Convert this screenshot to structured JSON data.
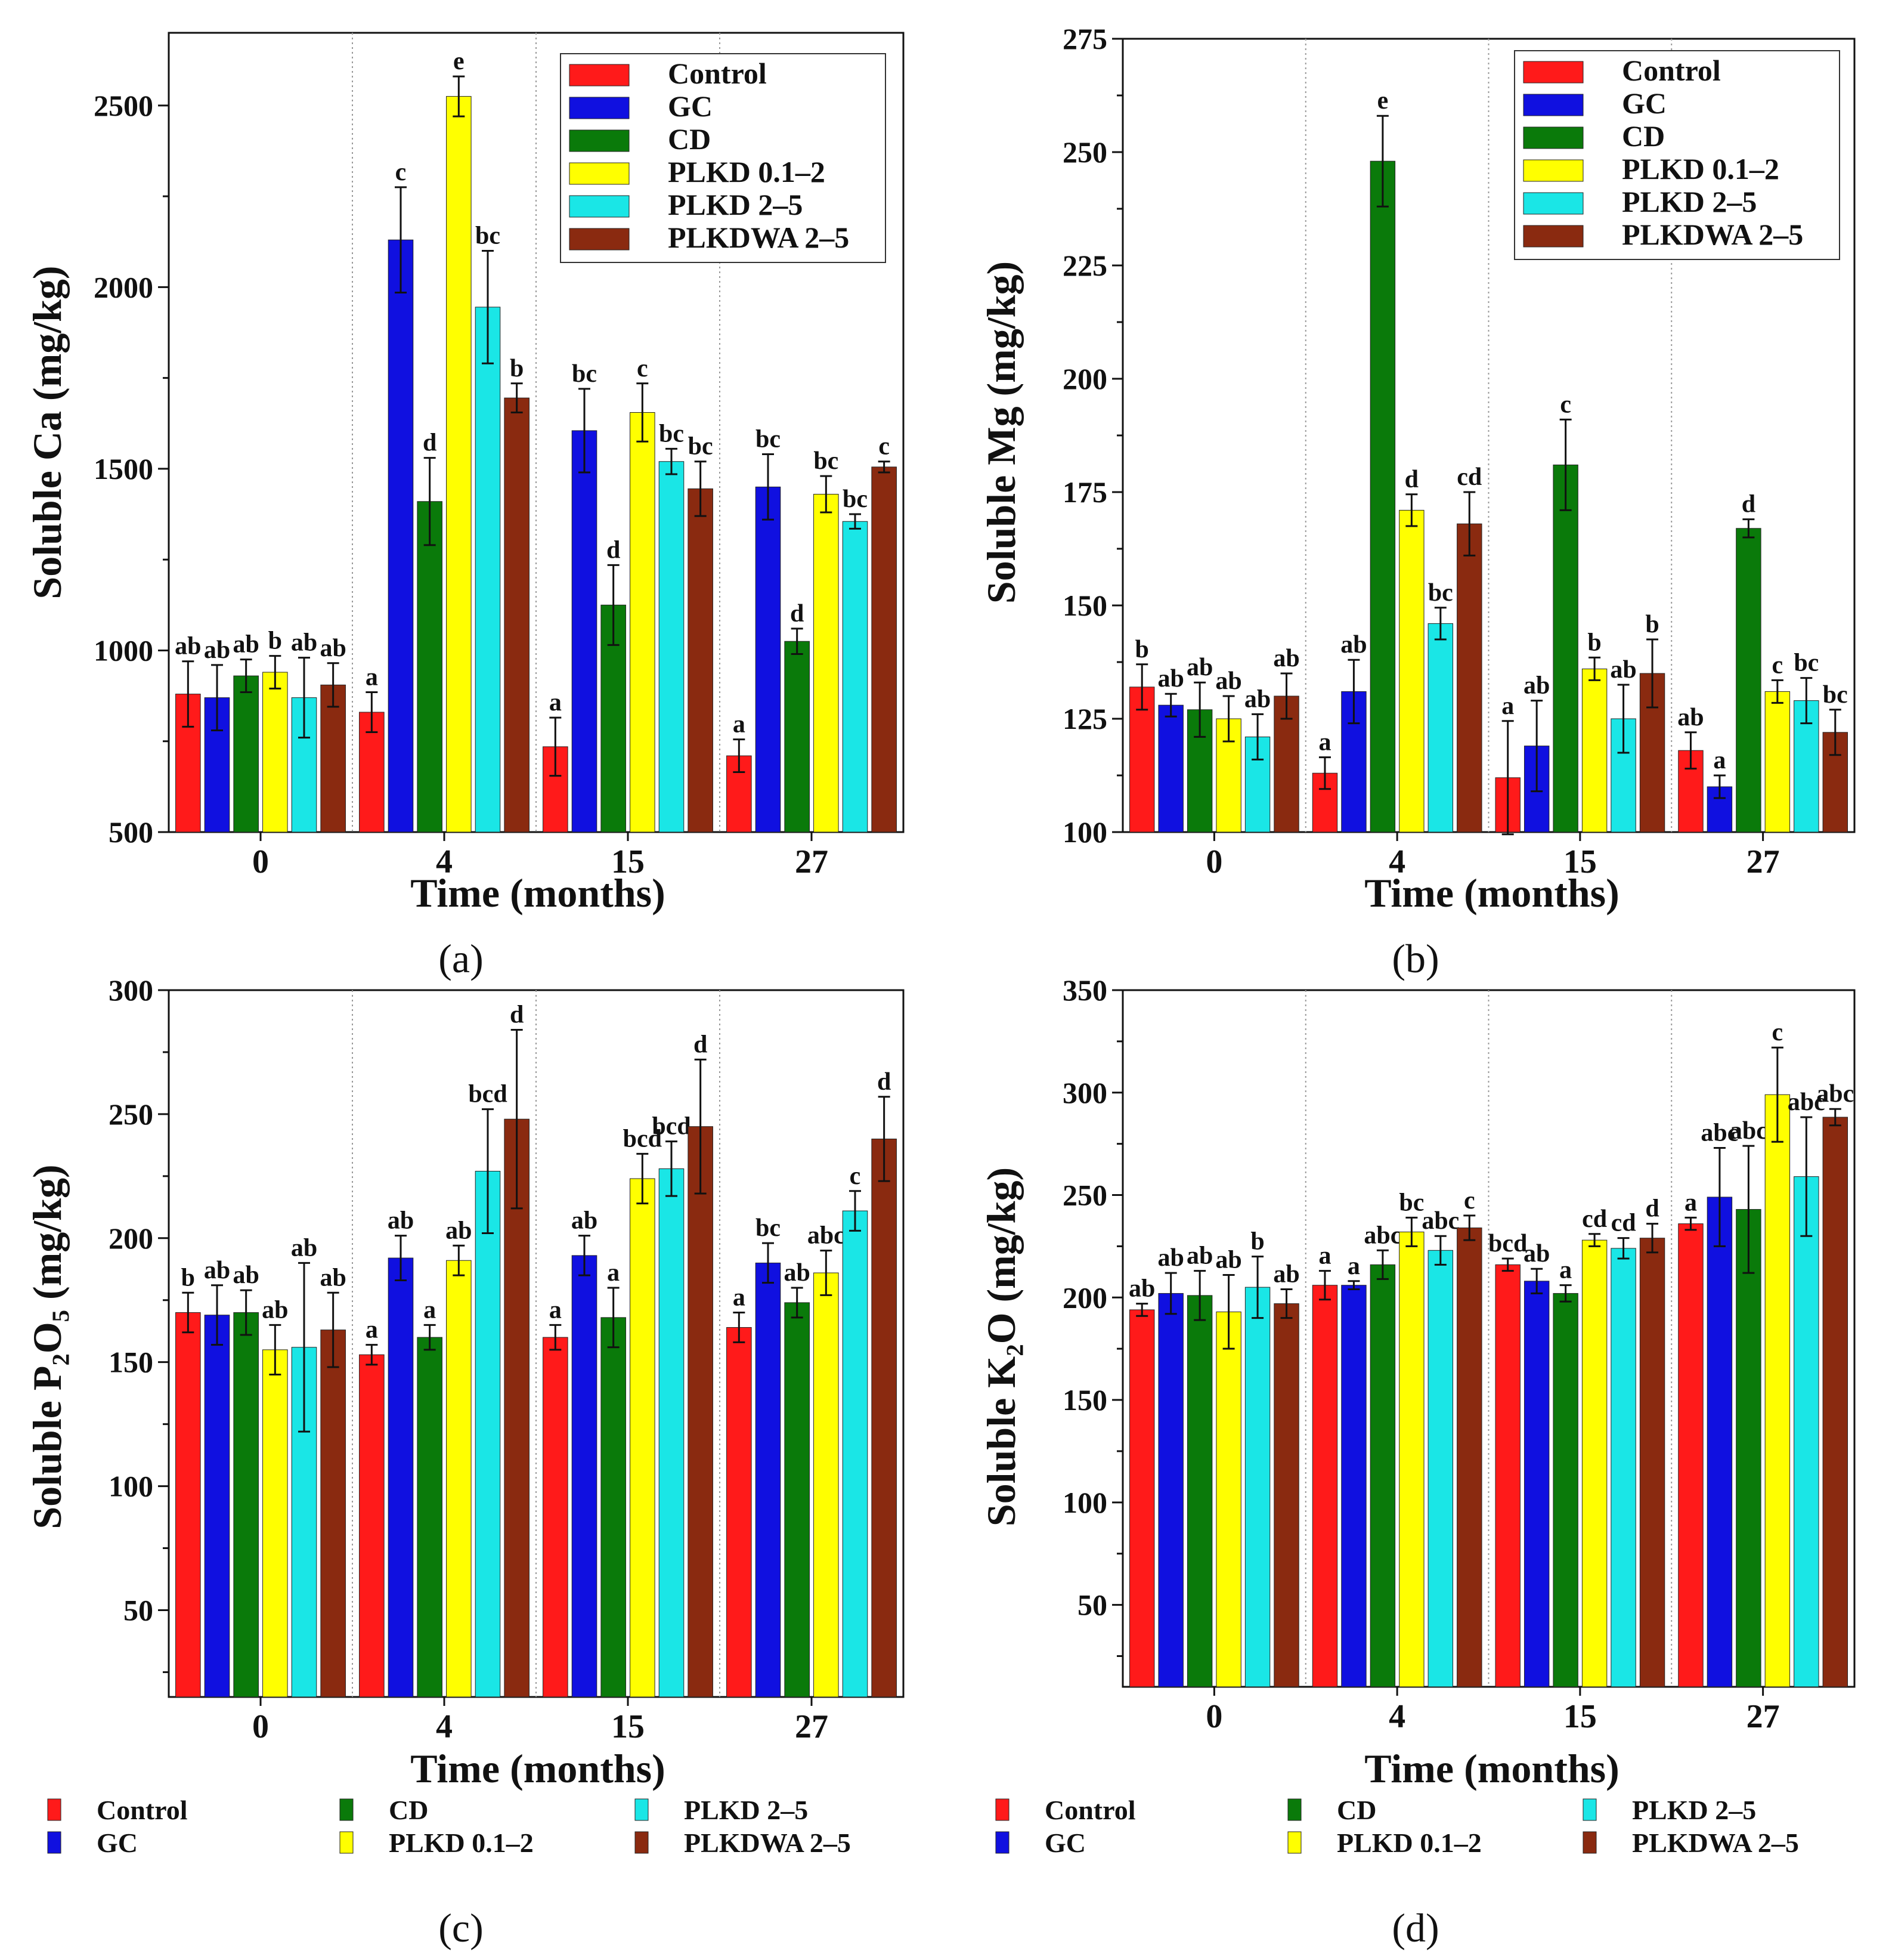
{
  "series_names": [
    "Control",
    "GC",
    "CD",
    "PLKD 0.1–2",
    "PLKD 2–5",
    "PLKDWA 2–5"
  ],
  "series_colors": [
    "#ff1a1a",
    "#1010e0",
    "#0a7a0a",
    "#ffff00",
    "#1ae6e6",
    "#8a2a10"
  ],
  "chart_data": [
    {
      "type": "bar",
      "panel": "(a)",
      "xlabel": "Time (months)",
      "ylabel": "Soluble Ca (mg/kg)",
      "ylim": [
        500,
        2700
      ],
      "yticks": [
        500,
        1000,
        1500,
        2000,
        2500
      ],
      "categories": [
        "0",
        "4",
        "15",
        "27"
      ],
      "legend": "top-right-box",
      "series": [
        {
          "name": "Control",
          "values": [
            880,
            830,
            735,
            710
          ],
          "errors": [
            90,
            55,
            80,
            45
          ],
          "letters": [
            "ab",
            "a",
            "a",
            "a"
          ]
        },
        {
          "name": "GC",
          "values": [
            870,
            2130,
            1605,
            1450
          ],
          "errors": [
            90,
            145,
            115,
            90
          ],
          "letters": [
            "ab",
            "c",
            "bc",
            "bc"
          ]
        },
        {
          "name": "CD",
          "values": [
            930,
            1410,
            1125,
            1025
          ],
          "errors": [
            45,
            120,
            110,
            35
          ],
          "letters": [
            "ab",
            "d",
            "d",
            "d"
          ]
        },
        {
          "name": "PLKD 0.1–2",
          "values": [
            940,
            2525,
            1655,
            1430
          ],
          "errors": [
            45,
            55,
            80,
            50
          ],
          "letters": [
            "b",
            "e",
            "c",
            "bc"
          ]
        },
        {
          "name": "PLKD 2–5",
          "values": [
            870,
            1945,
            1520,
            1355
          ],
          "errors": [
            110,
            155,
            35,
            20
          ],
          "letters": [
            "ab",
            "bc",
            "bc",
            "bc"
          ]
        },
        {
          "name": "PLKDWA 2–5",
          "values": [
            905,
            1695,
            1445,
            1505
          ],
          "errors": [
            60,
            40,
            75,
            15
          ],
          "letters": [
            "ab",
            "b",
            "bc",
            "c"
          ]
        }
      ]
    },
    {
      "type": "bar",
      "panel": "(b)",
      "xlabel": "Time (months)",
      "ylabel": "Soluble Mg (mg/kg)",
      "ylim": [
        100,
        275
      ],
      "yticks": [
        100,
        125,
        150,
        175,
        200,
        225,
        250,
        275
      ],
      "categories": [
        "0",
        "4",
        "15",
        "27"
      ],
      "legend": "top-right-box",
      "series": [
        {
          "name": "Control",
          "values": [
            132,
            113,
            112,
            118
          ],
          "errors": [
            5,
            3.5,
            12.5,
            4
          ],
          "letters": [
            "b",
            "a",
            "a",
            "ab"
          ]
        },
        {
          "name": "GC",
          "values": [
            128,
            131,
            119,
            110
          ],
          "errors": [
            2.5,
            7,
            10,
            2.5
          ],
          "letters": [
            "ab",
            "ab",
            "ab",
            "a"
          ]
        },
        {
          "name": "CD",
          "values": [
            127,
            248,
            181,
            167
          ],
          "errors": [
            6,
            10,
            10,
            2
          ],
          "letters": [
            "ab",
            "e",
            "c",
            "d"
          ]
        },
        {
          "name": "PLKD 0.1–2",
          "values": [
            125,
            171,
            136,
            131
          ],
          "errors": [
            5,
            3.5,
            2.5,
            2.5
          ],
          "letters": [
            "ab",
            "d",
            "b",
            "c"
          ]
        },
        {
          "name": "PLKD 2–5",
          "values": [
            121,
            146,
            125,
            129
          ],
          "errors": [
            5,
            3.5,
            7.5,
            5
          ],
          "letters": [
            "ab",
            "bc",
            "ab",
            "bc"
          ]
        },
        {
          "name": "PLKDWA 2–5",
          "values": [
            130,
            168,
            135,
            122
          ],
          "errors": [
            5,
            7,
            7.5,
            5
          ],
          "letters": [
            "ab",
            "cd",
            "b",
            "bc"
          ]
        }
      ]
    },
    {
      "type": "bar",
      "panel": "(c)",
      "xlabel": "Time (months)",
      "ylabel": "Soluble P₂O₅ (mg/kg)",
      "ylim": [
        15,
        300
      ],
      "yticks": [
        50,
        100,
        150,
        200,
        250,
        300
      ],
      "categories": [
        "0",
        "4",
        "15",
        "27"
      ],
      "legend": "bottom",
      "series": [
        {
          "name": "Control",
          "values": [
            170,
            153,
            160,
            164
          ],
          "errors": [
            8,
            4,
            5,
            6
          ],
          "letters": [
            "b",
            "a",
            "a",
            "a"
          ]
        },
        {
          "name": "GC",
          "values": [
            169,
            192,
            193,
            190
          ],
          "errors": [
            12,
            9,
            8,
            8
          ],
          "letters": [
            "ab",
            "ab",
            "ab",
            "bc"
          ]
        },
        {
          "name": "CD",
          "values": [
            170,
            160,
            168,
            174
          ],
          "errors": [
            9,
            5,
            12,
            6
          ],
          "letters": [
            "ab",
            "a",
            "a",
            "ab"
          ]
        },
        {
          "name": "PLKD 0.1–2",
          "values": [
            155,
            191,
            224,
            186
          ],
          "errors": [
            10,
            6,
            10,
            9
          ],
          "letters": [
            "ab",
            "ab",
            "bcd",
            "abc"
          ]
        },
        {
          "name": "PLKD 2–5",
          "values": [
            156,
            227,
            228,
            211
          ],
          "errors": [
            34,
            25,
            11,
            8
          ],
          "letters": [
            "ab",
            "bcd",
            "bcd",
            "c"
          ]
        },
        {
          "name": "PLKDWA 2–5",
          "values": [
            163,
            248,
            245,
            240
          ],
          "errors": [
            15,
            36,
            27,
            17
          ],
          "letters": [
            "ab",
            "d",
            "d",
            "d"
          ]
        }
      ]
    },
    {
      "type": "bar",
      "panel": "(d)",
      "xlabel": "Time (months)",
      "ylabel": "Soluble K₂O (mg/kg)",
      "ylim": [
        10,
        350
      ],
      "yticks": [
        50,
        100,
        150,
        200,
        250,
        300,
        350
      ],
      "categories": [
        "0",
        "4",
        "15",
        "27"
      ],
      "legend": "bottom",
      "series": [
        {
          "name": "Control",
          "values": [
            194,
            206,
            216,
            236
          ],
          "errors": [
            3,
            7,
            3,
            3
          ],
          "letters": [
            "ab",
            "a",
            "bcd",
            "a"
          ]
        },
        {
          "name": "GC",
          "values": [
            202,
            206,
            208,
            249
          ],
          "errors": [
            10,
            2,
            6,
            24
          ],
          "letters": [
            "ab",
            "a",
            "ab",
            "abc"
          ]
        },
        {
          "name": "CD",
          "values": [
            201,
            216,
            202,
            243
          ],
          "errors": [
            12,
            7,
            4,
            31
          ],
          "letters": [
            "ab",
            "abc",
            "a",
            "abc"
          ]
        },
        {
          "name": "PLKD 0.1–2",
          "values": [
            193,
            232,
            228,
            299
          ],
          "errors": [
            18,
            7,
            3,
            23
          ],
          "letters": [
            "ab",
            "bc",
            "cd",
            "c"
          ]
        },
        {
          "name": "PLKD 2–5",
          "values": [
            205,
            223,
            224,
            259
          ],
          "errors": [
            15,
            7,
            5,
            29
          ],
          "letters": [
            "b",
            "abc",
            "cd",
            "abc"
          ]
        },
        {
          "name": "PLKDWA 2–5",
          "values": [
            197,
            234,
            229,
            288
          ],
          "errors": [
            7,
            6,
            7,
            4
          ],
          "letters": [
            "ab",
            "c",
            "d",
            "abc"
          ]
        }
      ]
    }
  ]
}
